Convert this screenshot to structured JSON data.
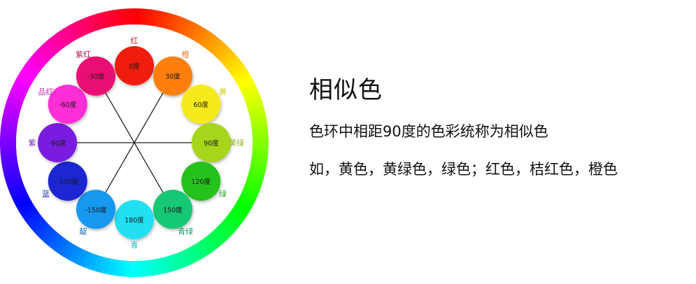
{
  "title": "相似色",
  "description": "色环中相距90度的色彩统称为相似色",
  "examples": "如，黄色，黄绿色，绿色；红色，桔红色，橙色",
  "wheel": {
    "circles": [
      {
        "deg": 0,
        "label": "0度",
        "fill": "#f01a0c",
        "name": "红",
        "nameColor": "#c8281e"
      },
      {
        "deg": 30,
        "label": "30度",
        "fill": "#ff7f11",
        "name": "橙",
        "nameColor": "#e7791c"
      },
      {
        "deg": 60,
        "label": "60度",
        "fill": "#f6ea1a",
        "name": "黄",
        "nameColor": "#d8c81c"
      },
      {
        "deg": 90,
        "label": "90度",
        "fill": "#a6d51d",
        "name": "黄绿",
        "nameColor": "#8fb62a"
      },
      {
        "deg": 120,
        "label": "120度",
        "fill": "#27c21b",
        "name": "绿",
        "nameColor": "#2d9c2a"
      },
      {
        "deg": 150,
        "label": "150度",
        "fill": "#12c773",
        "name": "青绿",
        "nameColor": "#17a069"
      },
      {
        "deg": 180,
        "label": "180度",
        "fill": "#20dff2",
        "name": "青",
        "nameColor": "#1cb2cf"
      },
      {
        "deg": -150,
        "label": "-150度",
        "fill": "#1497f0",
        "name": "靛",
        "nameColor": "#1b67b0"
      },
      {
        "deg": -120,
        "label": "-120度",
        "fill": "#1c27d1",
        "name": "蓝",
        "nameColor": "#1c2ba8"
      },
      {
        "deg": -90,
        "label": "-90度",
        "fill": "#7a1fe0",
        "name": "紫",
        "nameColor": "#6e23b0"
      },
      {
        "deg": -60,
        "label": "-60度",
        "fill": "#ff2fd6",
        "name": "品红",
        "nameColor": "#c72cb5"
      },
      {
        "deg": -30,
        "label": "-30度",
        "fill": "#ea1173",
        "name": "紫红",
        "nameColor": "#b41e5c"
      }
    ]
  }
}
